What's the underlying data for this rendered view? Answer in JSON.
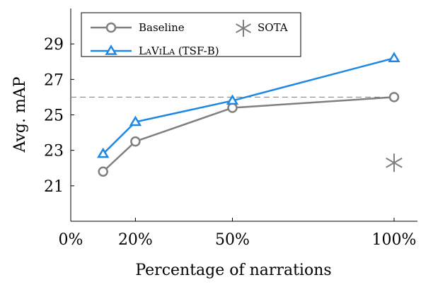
{
  "chart_data": {
    "type": "line",
    "xlabel": "Percentage of narrations",
    "ylabel": "Avg. mAP",
    "x_ticks": [
      {
        "value": 0,
        "label": "0%"
      },
      {
        "value": 20,
        "label": "20%"
      },
      {
        "value": 50,
        "label": "50%"
      },
      {
        "value": 100,
        "label": "100%"
      }
    ],
    "y_ticks": [
      {
        "value": 21,
        "label": "21"
      },
      {
        "value": 23,
        "label": "23"
      },
      {
        "value": 25,
        "label": "25"
      },
      {
        "value": 27,
        "label": "27"
      },
      {
        "value": 29,
        "label": "29"
      }
    ],
    "xlim": [
      0,
      100
    ],
    "ylim": [
      19.0,
      31.0
    ],
    "grid": false,
    "legend_placement": "top-left",
    "series": [
      {
        "name": "Baseline",
        "color": "#7f7f7f",
        "marker": "circle",
        "x": [
          10,
          20,
          50,
          100
        ],
        "y": [
          21.8,
          23.5,
          25.4,
          26.0
        ]
      },
      {
        "name": "LAVILA (TSF-B)",
        "color": "#1e88e5",
        "marker": "triangle",
        "x": [
          10,
          20,
          50,
          100
        ],
        "y": [
          22.8,
          24.6,
          25.8,
          28.2
        ]
      }
    ],
    "reference_line": {
      "y": 26.0,
      "style": "dashed",
      "color": "#7f7f7f"
    },
    "points": [
      {
        "name": "SOTA",
        "x": 100,
        "y": 22.3,
        "marker": "asterisk",
        "color": "#7f7f7f"
      }
    ]
  }
}
